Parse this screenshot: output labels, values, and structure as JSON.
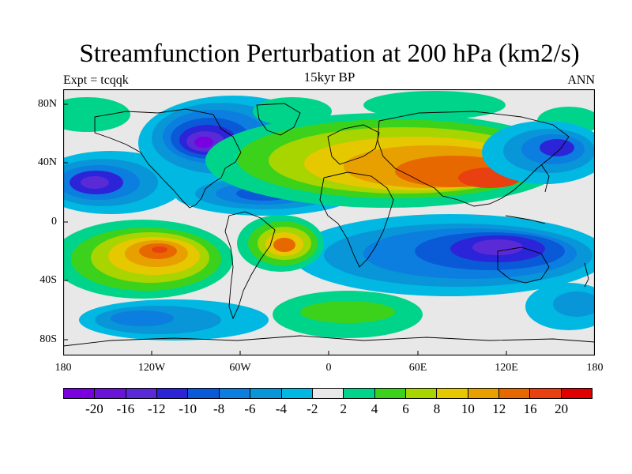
{
  "title": "Streamfunction Perturbation at 200 hPa (km2/s)",
  "subtitle": "15kyr BP",
  "left_label": "Expt = tcqqk",
  "right_label": "ANN",
  "lat_labels": [
    "80N",
    "40N",
    "0",
    "40S",
    "80S"
  ],
  "lon_labels": [
    "180",
    "120W",
    "60W",
    "0",
    "60E",
    "120E",
    "180"
  ],
  "colorbar": {
    "colors": [
      "#7a00e0",
      "#6a14d8",
      "#5a2ad6",
      "#2c24d8",
      "#0a5ad8",
      "#0c7ee0",
      "#0896d8",
      "#00b8e2",
      "#e8e8e8",
      "#00d48a",
      "#3cd21c",
      "#a8d400",
      "#e6c800",
      "#e8a000",
      "#e86800",
      "#e84010",
      "#e00000"
    ],
    "labels": [
      "-20",
      "-16",
      "-12",
      "-10",
      "-8",
      "-6",
      "-4",
      "-2",
      "2",
      "4",
      "6",
      "8",
      "10",
      "12",
      "16",
      "20"
    ]
  }
}
